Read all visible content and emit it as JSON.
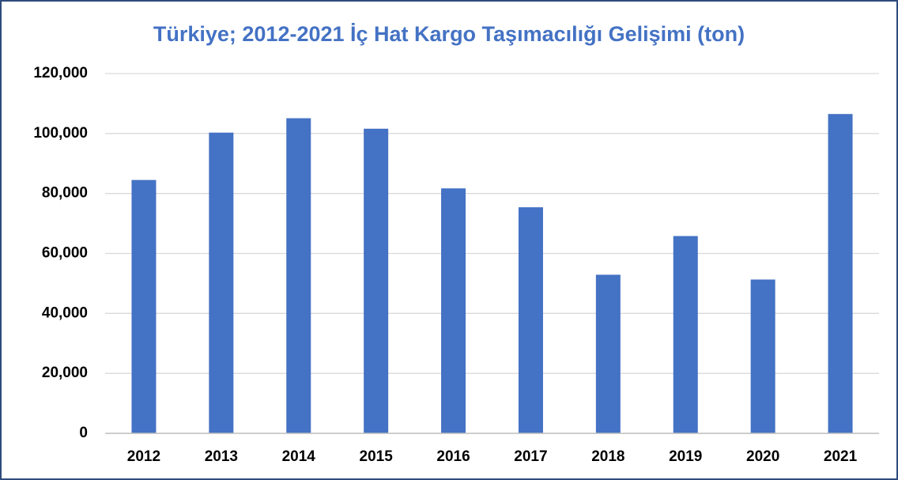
{
  "chart_data": {
    "type": "bar",
    "title": "Türkiye; 2012-2021 İç Hat Kargo Taşımacılığı Gelişimi (ton)",
    "categories": [
      "2012",
      "2013",
      "2014",
      "2015",
      "2016",
      "2017",
      "2018",
      "2019",
      "2020",
      "2021"
    ],
    "values": [
      84500,
      100300,
      105100,
      101600,
      81700,
      75400,
      52900,
      65800,
      51300,
      106500
    ],
    "color": "#4472c4",
    "ylim": [
      0,
      120000
    ],
    "yticks": [
      0,
      {
        "value": 20000,
        "label": "20,000"
      },
      {
        "value": 40000,
        "label": "40,000"
      },
      {
        "value": 60000,
        "label": "60,000"
      },
      {
        "value": 80000,
        "label": "80,000"
      },
      {
        "value": 100000,
        "label": "100,000"
      },
      {
        "value": 120000,
        "label": "120,000"
      }
    ],
    "grid": true
  }
}
